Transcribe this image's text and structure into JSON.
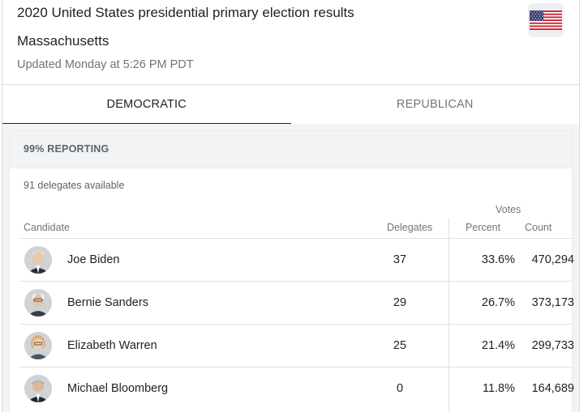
{
  "header": {
    "title": "2020 United States presidential primary election results",
    "state": "Massachusetts",
    "updated": "Updated Monday at 5:26 PM PDT",
    "flag_icon": "us-flag-icon"
  },
  "tabs": [
    {
      "label": "DEMOCRATIC",
      "active": true
    },
    {
      "label": "REPUBLICAN",
      "active": false
    }
  ],
  "results": {
    "reporting": "99% REPORTING",
    "delegates_available": "91 delegates available",
    "votes_header": "Votes",
    "columns": {
      "candidate": "Candidate",
      "delegates": "Delegates",
      "percent": "Percent",
      "count": "Count"
    },
    "rows": [
      {
        "name": "Joe Biden",
        "delegates": "37",
        "percent": "33.6%",
        "count": "470,294",
        "avatar_color": "#8a8a8a"
      },
      {
        "name": "Bernie Sanders",
        "delegates": "29",
        "percent": "26.7%",
        "count": "373,173",
        "avatar_color": "#b0b0b0"
      },
      {
        "name": "Elizabeth Warren",
        "delegates": "25",
        "percent": "21.4%",
        "count": "299,733",
        "avatar_color": "#c4a070"
      },
      {
        "name": "Michael Bloomberg",
        "delegates": "0",
        "percent": "11.8%",
        "count": "164,689",
        "avatar_color": "#7a7a7a"
      }
    ]
  },
  "colors": {
    "text": "#222222",
    "muted": "#70757a",
    "divider": "#dadce0",
    "panel_bg": "#f1f3f4"
  }
}
